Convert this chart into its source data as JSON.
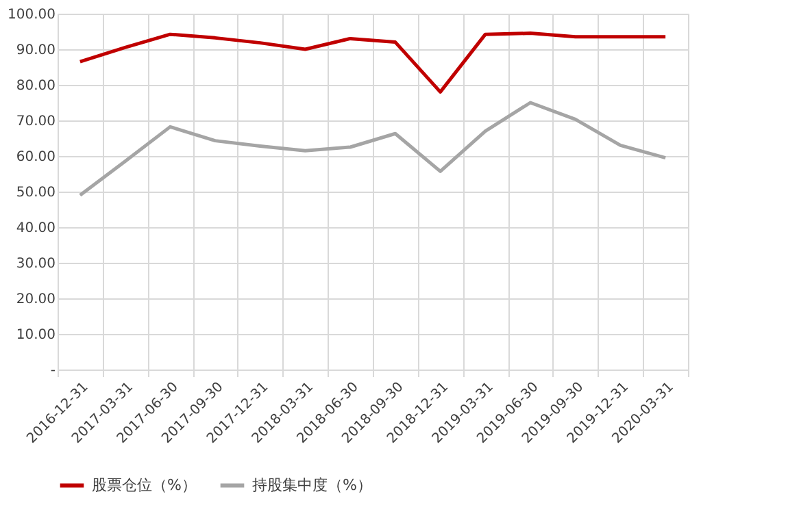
{
  "chart_data": {
    "type": "line",
    "categories": [
      "2016-12-31",
      "2017-03-31",
      "2017-06-30",
      "2017-09-30",
      "2017-12-31",
      "2018-03-31",
      "2018-06-30",
      "2018-09-30",
      "2018-12-31",
      "2019-03-31",
      "2019-06-30",
      "2019-09-30",
      "2019-12-31",
      "2020-03-31"
    ],
    "series": [
      {
        "name": "股票仓位（%）",
        "color": "#c00000",
        "values": [
          86.5,
          90.5,
          94.2,
          93.2,
          91.8,
          90.0,
          93.0,
          92.0,
          78.0,
          94.2,
          94.5,
          93.5,
          93.5,
          93.5
        ]
      },
      {
        "name": "持股集中度（%）",
        "color": "#a5a5a5",
        "values": [
          49.0,
          58.5,
          68.2,
          64.3,
          62.8,
          61.5,
          62.5,
          66.3,
          55.7,
          67.0,
          75.0,
          70.3,
          63.0,
          59.5
        ]
      }
    ],
    "ylim": [
      0,
      100
    ],
    "yticks": [
      {
        "value": 0,
        "label": "-"
      },
      {
        "value": 10,
        "label": "10.00"
      },
      {
        "value": 20,
        "label": "20.00"
      },
      {
        "value": 30,
        "label": "30.00"
      },
      {
        "value": 40,
        "label": "40.00"
      },
      {
        "value": 50,
        "label": "50.00"
      },
      {
        "value": 60,
        "label": "60.00"
      },
      {
        "value": 70,
        "label": "70.00"
      },
      {
        "value": 80,
        "label": "80.00"
      },
      {
        "value": 90,
        "label": "90.00"
      },
      {
        "value": 100,
        "label": "100.00"
      }
    ],
    "grid": true,
    "legend": "bottom",
    "marker": "none",
    "line_style": "solid"
  }
}
